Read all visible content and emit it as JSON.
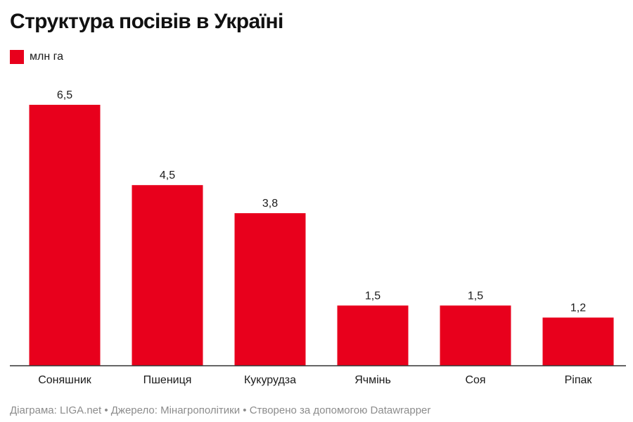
{
  "chart_data": {
    "type": "bar",
    "title": "Структура посівів в Україні",
    "legend": [
      {
        "label": "млн га",
        "color": "#e8001c"
      }
    ],
    "categories": [
      "Соняшник",
      "Пшениця",
      "Кукурудза",
      "Ячмінь",
      "Соя",
      "Ріпак"
    ],
    "values": [
      6.5,
      4.5,
      3.8,
      1.5,
      1.5,
      1.2
    ],
    "value_labels": [
      "6,5",
      "4,5",
      "3,8",
      "1,5",
      "1,5",
      "1,2"
    ],
    "series": [
      {
        "name": "млн га",
        "values": [
          6.5,
          4.5,
          3.8,
          1.5,
          1.5,
          1.2
        ]
      }
    ],
    "bar_color": "#e8001c",
    "xlabel": "",
    "ylabel": "",
    "ylim": [
      0,
      6.5
    ],
    "grid": false,
    "legend_position": "top-left"
  },
  "footer": "Діаграма: LIGA.net • Джерело: Мінагрополітики • Створено за допомогою Datawrapper"
}
